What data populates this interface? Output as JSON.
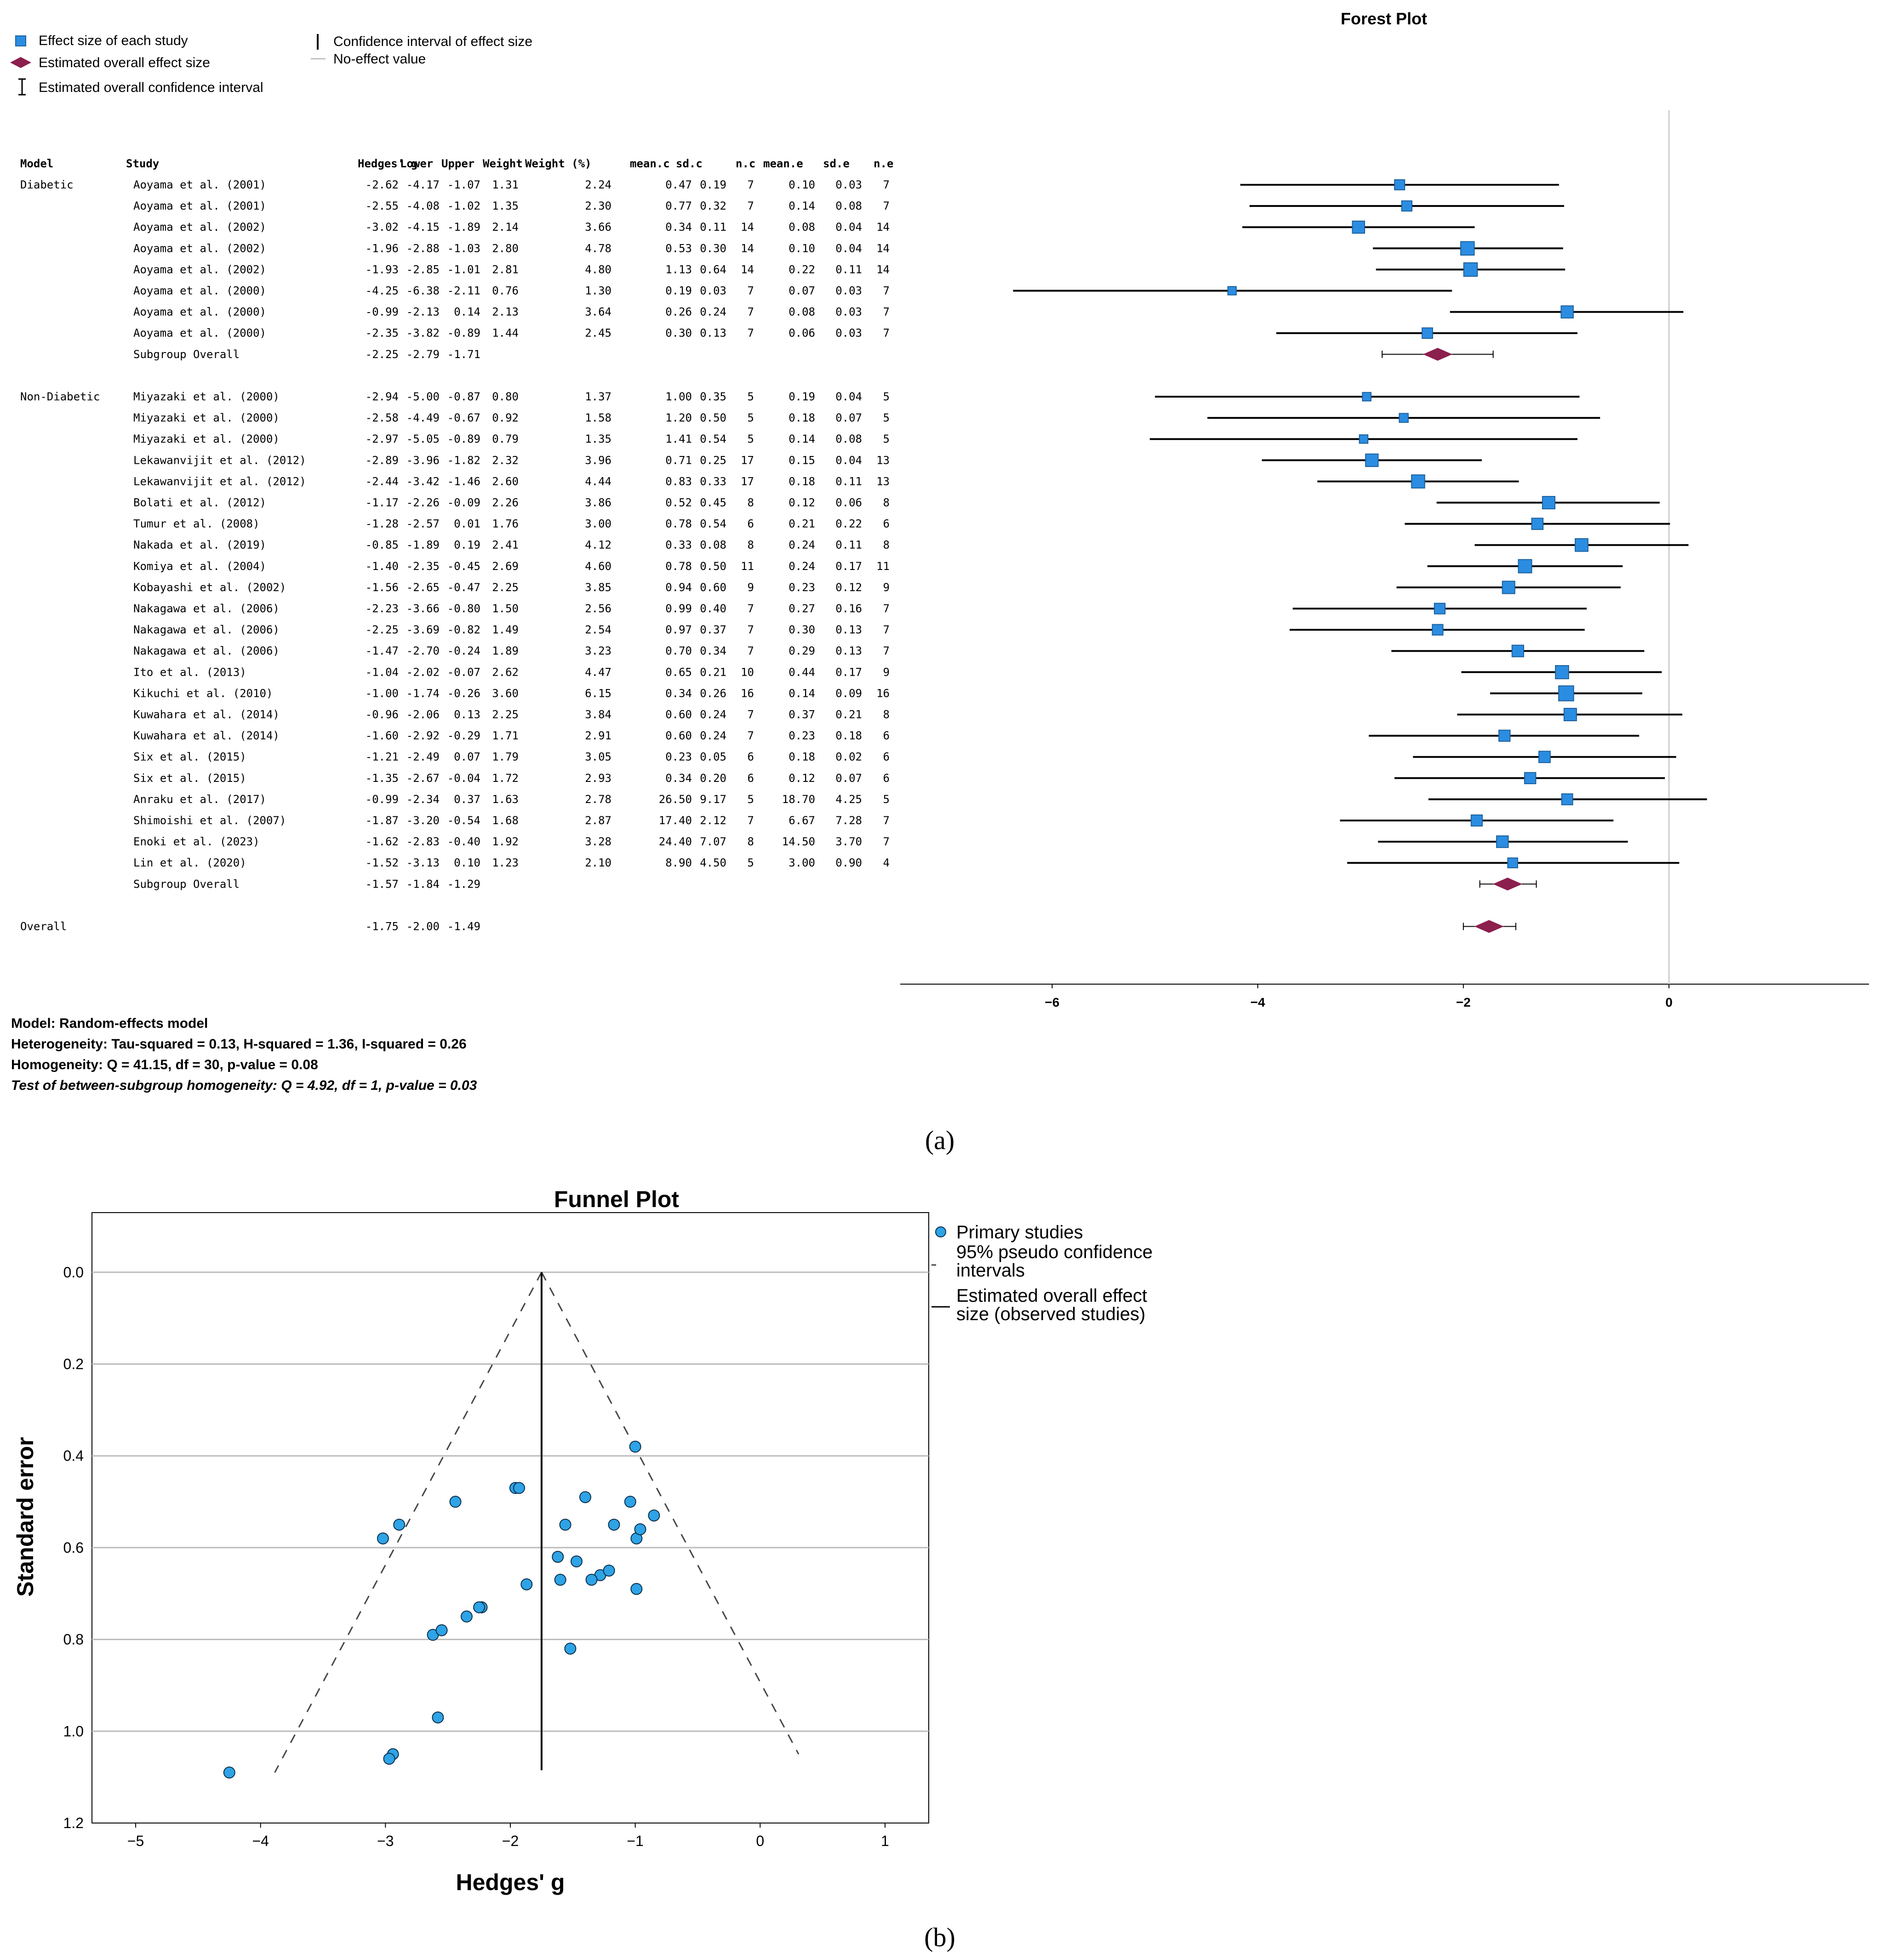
{
  "forest_legend": {
    "study_effect": "Effect size of each study",
    "overall_effect": "Estimated overall effect size",
    "overall_ci": "Estimated overall confidence interval",
    "ci": "Confidence interval of effect size",
    "no_effect": "No-effect value"
  },
  "colors": {
    "square": "#2b8de2",
    "diamond": "#8b1f4e",
    "dot": "#2ea3e6"
  },
  "table_headers": [
    "Model",
    "Study",
    "Hedges' g",
    "Lower",
    "Upper",
    "Weight",
    "Weight (%)",
    "mean.c",
    "sd.c",
    "n.c",
    "mean.e",
    "sd.e",
    "n.e"
  ],
  "footer": {
    "model": "Model: Random-effects model",
    "heterogeneity": "Heterogeneity: Tau-squared = 0.13, H-squared = 1.36, I-squared = 0.26",
    "homogeneity": "Homogeneity: Q = 41.15, df = 30, p-value = 0.08",
    "test": "Test of between-subgroup homogeneity: Q = 4.92, df = 1, p-value = 0.03"
  },
  "panel_a_label": "(a)",
  "panel_b_label": "(b)",
  "chart_data": [
    {
      "type": "forest",
      "title": "Forest Plot",
      "xlabel": "",
      "xlim": [
        -7.5,
        1.95
      ],
      "xticks": [
        -6,
        -4,
        -2,
        0
      ],
      "no_effect_value": 0,
      "groups": [
        {
          "model": "Diabetic",
          "rows": [
            [
              "Aoyama et al. (2001)",
              "-2.62",
              "-4.17",
              "-1.07",
              "1.31",
              "2.24",
              "0.47",
              "0.19",
              "7",
              "0.10",
              "0.03",
              "7"
            ],
            [
              "Aoyama et al. (2001)",
              "-2.55",
              "-4.08",
              "-1.02",
              "1.35",
              "2.30",
              "0.77",
              "0.32",
              "7",
              "0.14",
              "0.08",
              "7"
            ],
            [
              "Aoyama et al. (2002)",
              "-3.02",
              "-4.15",
              "-1.89",
              "2.14",
              "3.66",
              "0.34",
              "0.11",
              "14",
              "0.08",
              "0.04",
              "14"
            ],
            [
              "Aoyama et al. (2002)",
              "-1.96",
              "-2.88",
              "-1.03",
              "2.80",
              "4.78",
              "0.53",
              "0.30",
              "14",
              "0.10",
              "0.04",
              "14"
            ],
            [
              "Aoyama et al. (2002)",
              "-1.93",
              "-2.85",
              "-1.01",
              "2.81",
              "4.80",
              "1.13",
              "0.64",
              "14",
              "0.22",
              "0.11",
              "14"
            ],
            [
              "Aoyama et al. (2000)",
              "-4.25",
              "-6.38",
              "-2.11",
              "0.76",
              "1.30",
              "0.19",
              "0.03",
              "7",
              "0.07",
              "0.03",
              "7"
            ],
            [
              "Aoyama et al. (2000)",
              "-0.99",
              "-2.13",
              "0.14",
              "2.13",
              "3.64",
              "0.26",
              "0.24",
              "7",
              "0.08",
              "0.03",
              "7"
            ],
            [
              "Aoyama et al. (2000)",
              "-2.35",
              "-3.82",
              "-0.89",
              "1.44",
              "2.45",
              "0.30",
              "0.13",
              "7",
              "0.06",
              "0.03",
              "7"
            ]
          ],
          "subgroup": [
            "Subgroup Overall",
            "-2.25",
            "-2.79",
            "-1.71"
          ]
        },
        {
          "model": "Non-Diabetic",
          "rows": [
            [
              "Miyazaki et al. (2000)",
              "-2.94",
              "-5.00",
              "-0.87",
              "0.80",
              "1.37",
              "1.00",
              "0.35",
              "5",
              "0.19",
              "0.04",
              "5"
            ],
            [
              "Miyazaki et al. (2000)",
              "-2.58",
              "-4.49",
              "-0.67",
              "0.92",
              "1.58",
              "1.20",
              "0.50",
              "5",
              "0.18",
              "0.07",
              "5"
            ],
            [
              "Miyazaki et al. (2000)",
              "-2.97",
              "-5.05",
              "-0.89",
              "0.79",
              "1.35",
              "1.41",
              "0.54",
              "5",
              "0.14",
              "0.08",
              "5"
            ],
            [
              "Lekawanvijit et al. (2012)",
              "-2.89",
              "-3.96",
              "-1.82",
              "2.32",
              "3.96",
              "0.71",
              "0.25",
              "17",
              "0.15",
              "0.04",
              "13"
            ],
            [
              "Lekawanvijit et al. (2012)",
              "-2.44",
              "-3.42",
              "-1.46",
              "2.60",
              "4.44",
              "0.83",
              "0.33",
              "17",
              "0.18",
              "0.11",
              "13"
            ],
            [
              "Bolati et al. (2012)",
              "-1.17",
              "-2.26",
              "-0.09",
              "2.26",
              "3.86",
              "0.52",
              "0.45",
              "8",
              "0.12",
              "0.06",
              "8"
            ],
            [
              "Tumur et al. (2008)",
              "-1.28",
              "-2.57",
              "0.01",
              "1.76",
              "3.00",
              "0.78",
              "0.54",
              "6",
              "0.21",
              "0.22",
              "6"
            ],
            [
              "Nakada et al. (2019)",
              "-0.85",
              "-1.89",
              "0.19",
              "2.41",
              "4.12",
              "0.33",
              "0.08",
              "8",
              "0.24",
              "0.11",
              "8"
            ],
            [
              "Komiya et al. (2004)",
              "-1.40",
              "-2.35",
              "-0.45",
              "2.69",
              "4.60",
              "0.78",
              "0.50",
              "11",
              "0.24",
              "0.17",
              "11"
            ],
            [
              "Kobayashi et al. (2002)",
              "-1.56",
              "-2.65",
              "-0.47",
              "2.25",
              "3.85",
              "0.94",
              "0.60",
              "9",
              "0.23",
              "0.12",
              "9"
            ],
            [
              "Nakagawa et al. (2006)",
              "-2.23",
              "-3.66",
              "-0.80",
              "1.50",
              "2.56",
              "0.99",
              "0.40",
              "7",
              "0.27",
              "0.16",
              "7"
            ],
            [
              "Nakagawa et al. (2006)",
              "-2.25",
              "-3.69",
              "-0.82",
              "1.49",
              "2.54",
              "0.97",
              "0.37",
              "7",
              "0.30",
              "0.13",
              "7"
            ],
            [
              "Nakagawa et al. (2006)",
              "-1.47",
              "-2.70",
              "-0.24",
              "1.89",
              "3.23",
              "0.70",
              "0.34",
              "7",
              "0.29",
              "0.13",
              "7"
            ],
            [
              "Ito et al. (2013)",
              "-1.04",
              "-2.02",
              "-0.07",
              "2.62",
              "4.47",
              "0.65",
              "0.21",
              "10",
              "0.44",
              "0.17",
              "9"
            ],
            [
              "Kikuchi et al. (2010)",
              "-1.00",
              "-1.74",
              "-0.26",
              "3.60",
              "6.15",
              "0.34",
              "0.26",
              "16",
              "0.14",
              "0.09",
              "16"
            ],
            [
              "Kuwahara et al. (2014)",
              "-0.96",
              "-2.06",
              "0.13",
              "2.25",
              "3.84",
              "0.60",
              "0.24",
              "7",
              "0.37",
              "0.21",
              "8"
            ],
            [
              "Kuwahara et al. (2014)",
              "-1.60",
              "-2.92",
              "-0.29",
              "1.71",
              "2.91",
              "0.60",
              "0.24",
              "7",
              "0.23",
              "0.18",
              "6"
            ],
            [
              "Six et al. (2015)",
              "-1.21",
              "-2.49",
              "0.07",
              "1.79",
              "3.05",
              "0.23",
              "0.05",
              "6",
              "0.18",
              "0.02",
              "6"
            ],
            [
              "Six et al. (2015)",
              "-1.35",
              "-2.67",
              "-0.04",
              "1.72",
              "2.93",
              "0.34",
              "0.20",
              "6",
              "0.12",
              "0.07",
              "6"
            ],
            [
              "Anraku et al. (2017)",
              "-0.99",
              "-2.34",
              "0.37",
              "1.63",
              "2.78",
              "26.50",
              "9.17",
              "5",
              "18.70",
              "4.25",
              "5"
            ],
            [
              "Shimoishi et al. (2007)",
              "-1.87",
              "-3.20",
              "-0.54",
              "1.68",
              "2.87",
              "17.40",
              "2.12",
              "7",
              "6.67",
              "7.28",
              "7"
            ],
            [
              "Enoki et al. (2023)",
              "-1.62",
              "-2.83",
              "-0.40",
              "1.92",
              "3.28",
              "24.40",
              "7.07",
              "8",
              "14.50",
              "3.70",
              "7"
            ],
            [
              "Lin et al. (2020)",
              "-1.52",
              "-3.13",
              "0.10",
              "1.23",
              "2.10",
              "8.90",
              "4.50",
              "5",
              "3.00",
              "0.90",
              "4"
            ]
          ],
          "subgroup": [
            "Subgroup Overall",
            "-1.57",
            "-1.84",
            "-1.29"
          ]
        }
      ],
      "overall": [
        "Overall",
        "-1.75",
        "-2.00",
        "-1.49"
      ]
    },
    {
      "type": "scatter",
      "title": "Funnel Plot",
      "xlabel": "Hedges' g",
      "ylabel": "Standard error",
      "xlim": [
        -5.35,
        1.35
      ],
      "ylim": [
        1.2,
        -0.13
      ],
      "xticks": [
        -5,
        -4,
        -3,
        -2,
        -1,
        0,
        1
      ],
      "yticks": [
        "0.0",
        "0.2",
        "0.4",
        "0.6",
        "0.8",
        "1.0",
        "1.2"
      ],
      "overall_effect": -1.75,
      "legend": [
        "Primary studies",
        "95% pseudo confidence intervals",
        "Estimated overall effect size (observed studies)"
      ],
      "points": [
        {
          "x": -2.62,
          "se": 0.79
        },
        {
          "x": -2.55,
          "se": 0.78
        },
        {
          "x": -3.02,
          "se": 0.58
        },
        {
          "x": -1.96,
          "se": 0.47
        },
        {
          "x": -1.93,
          "se": 0.47
        },
        {
          "x": -4.25,
          "se": 1.09
        },
        {
          "x": -0.99,
          "se": 0.58
        },
        {
          "x": -2.35,
          "se": 0.75
        },
        {
          "x": -2.94,
          "se": 1.05
        },
        {
          "x": -2.58,
          "se": 0.97
        },
        {
          "x": -2.97,
          "se": 1.06
        },
        {
          "x": -2.89,
          "se": 0.55
        },
        {
          "x": -2.44,
          "se": 0.5
        },
        {
          "x": -1.17,
          "se": 0.55
        },
        {
          "x": -1.28,
          "se": 0.66
        },
        {
          "x": -0.85,
          "se": 0.53
        },
        {
          "x": -1.4,
          "se": 0.49
        },
        {
          "x": -1.56,
          "se": 0.55
        },
        {
          "x": -2.23,
          "se": 0.73
        },
        {
          "x": -2.25,
          "se": 0.73
        },
        {
          "x": -1.47,
          "se": 0.63
        },
        {
          "x": -1.04,
          "se": 0.5
        },
        {
          "x": -1.0,
          "se": 0.38
        },
        {
          "x": -0.96,
          "se": 0.56
        },
        {
          "x": -1.6,
          "se": 0.67
        },
        {
          "x": -1.21,
          "se": 0.65
        },
        {
          "x": -1.35,
          "se": 0.67
        },
        {
          "x": -0.99,
          "se": 0.69
        },
        {
          "x": -1.87,
          "se": 0.68
        },
        {
          "x": -1.62,
          "se": 0.62
        },
        {
          "x": -1.52,
          "se": 0.82
        }
      ]
    }
  ]
}
